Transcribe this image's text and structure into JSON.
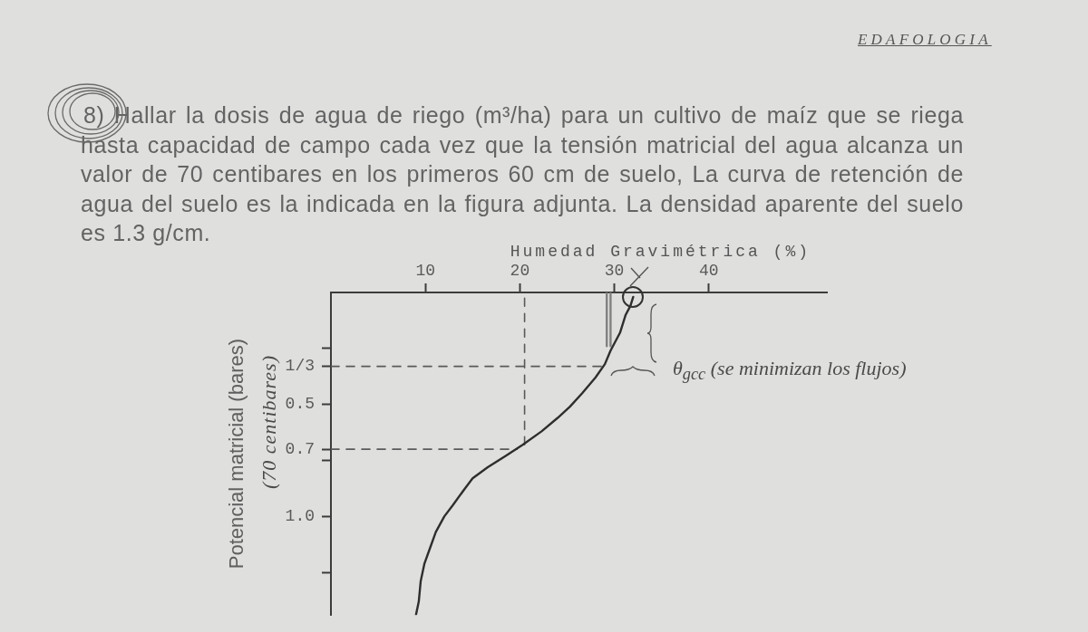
{
  "chart_data": {
    "type": "line",
    "title": "8) Hallar la dosis de agua de riego (m³/ha) para un cultivo de maíz que se riega hasta capacidad de campo cada vez que la tensión matricial del agua alcanza un valor de 70 centibares en los primeros 60 cm de suelo, La curva de retención de agua del suelo es la indicada en la figura adjunta. La densidad aparente del suelo es 1.3 g/cm.",
    "xlabel": "Humedad Gravimétrica (%)",
    "ylabel": "Potencial matricial (bares)",
    "xlim": [
      0,
      52.5
    ],
    "xticks": [
      10,
      20,
      30,
      40
    ],
    "ylim": [
      1.44,
      0
    ],
    "yticks": [
      {
        "value": 0.25,
        "label": null
      },
      {
        "value": 0.33,
        "label": "1/3"
      },
      0.5,
      {
        "value": 0.7,
        "label": "0.7"
      },
      {
        "value": 0.75,
        "label": null
      },
      {
        "value": 1,
        "label": "1.0"
      },
      {
        "value": 1.25,
        "label": null
      }
    ],
    "grid": false,
    "legend": false,
    "marker": "none",
    "line_style": "solid",
    "series": [
      {
        "color": "#2e2e2e",
        "x": [
          32.0,
          31.7,
          31.2,
          30.6,
          29.6,
          29.0,
          28.0,
          26.6,
          25.3,
          24.0,
          22.3,
          20.3,
          18.5,
          16.6,
          15.0,
          14.1,
          12.9,
          12.0,
          11.1,
          10.5,
          9.9,
          9.5,
          9.3,
          9.0
        ],
        "values": [
          0.02,
          0.06,
          0.1,
          0.18,
          0.26,
          0.32,
          0.38,
          0.45,
          0.51,
          0.56,
          0.62,
          0.68,
          0.73,
          0.78,
          0.83,
          0.88,
          0.95,
          1.0,
          1.07,
          1.14,
          1.21,
          1.29,
          1.38,
          1.44
        ]
      },
      {
        "color": "#5a5a5a",
        "line_style": "dashed",
        "x": [
          0,
          28.8
        ],
        "values": [
          0.33,
          0.33
        ]
      },
      {
        "color": "#5a5a5a",
        "line_style": "dashed",
        "x": [
          0,
          19.7
        ],
        "values": [
          0.7,
          0.7
        ]
      },
      {
        "color": "#5a5a5a",
        "line_style": "dashed",
        "x": [
          20.5,
          20.5
        ],
        "values": [
          0.68,
          0
        ]
      },
      {
        "color": "#808080",
        "x": [
          29.2,
          29.2
        ],
        "values": [
          0,
          0.24
        ]
      },
      {
        "color": "#808080",
        "x": [
          29.6,
          29.6
        ],
        "values": [
          0,
          0.24
        ]
      }
    ],
    "annotations": [
      "EDAFOLOGIA",
      "(70 centibares)",
      "θ$_{gcc}$ (se minimizan los flujos)"
    ]
  }
}
